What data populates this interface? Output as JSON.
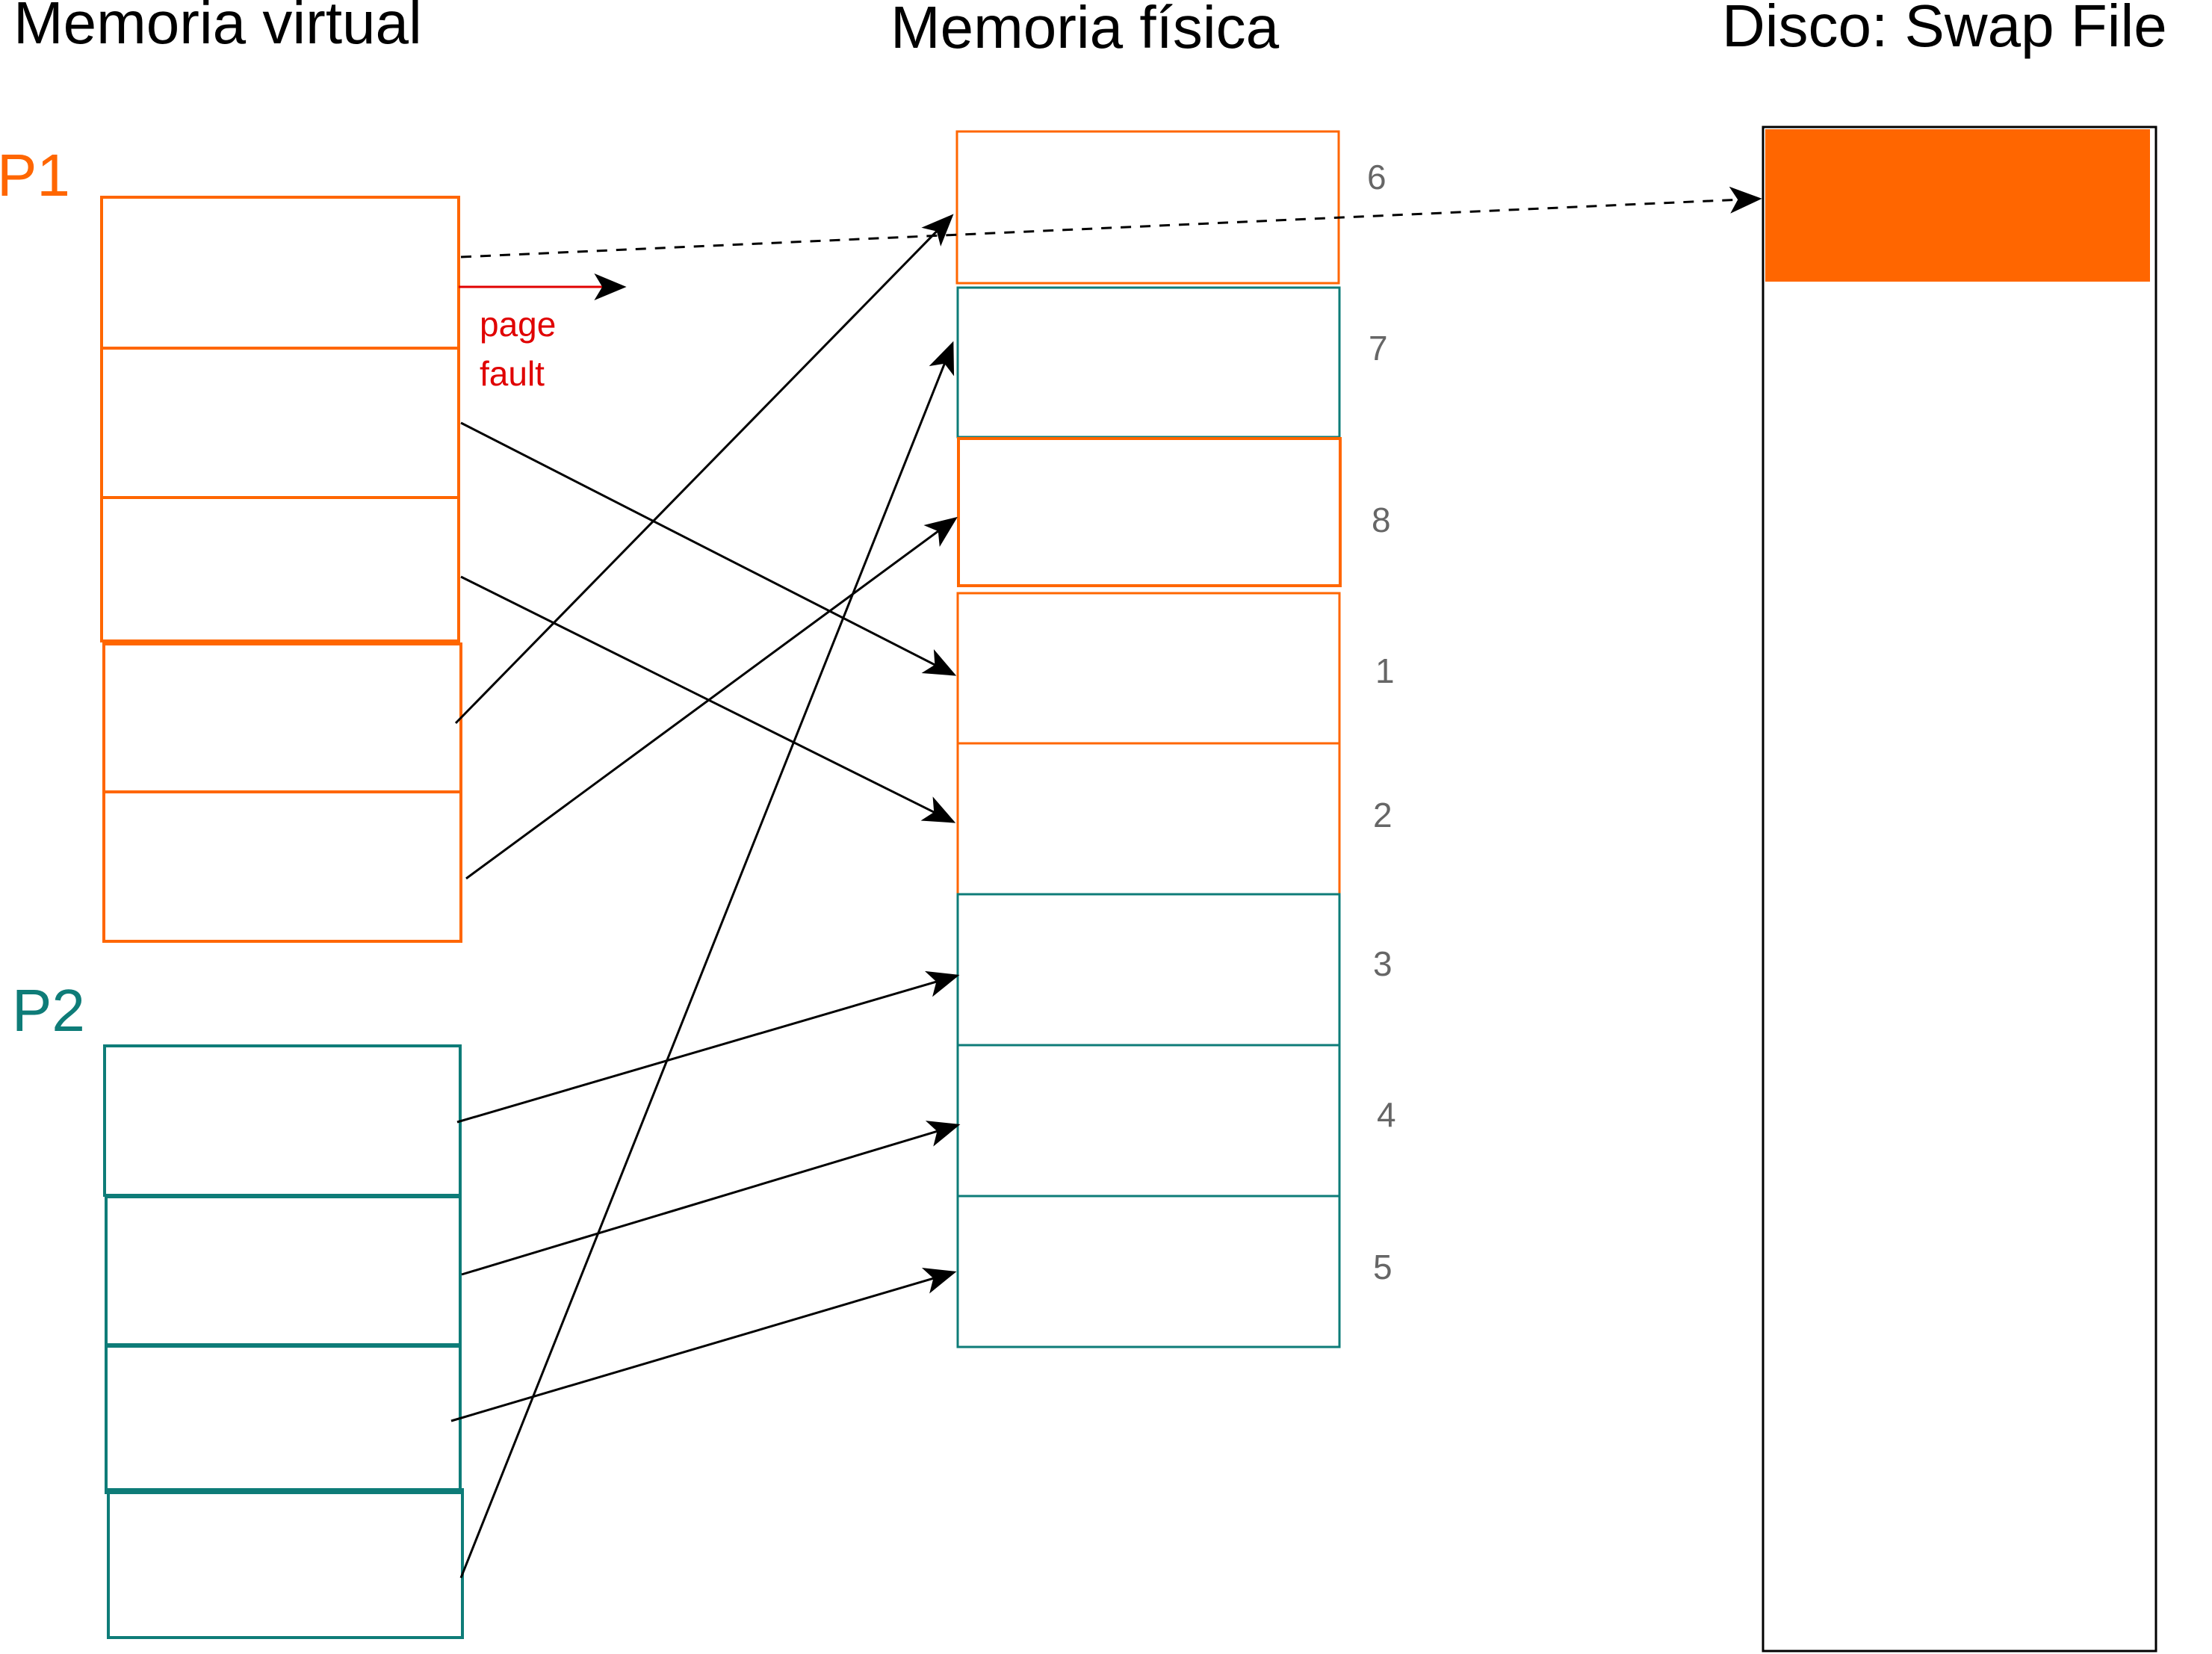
{
  "headings": {
    "virtual": "Memoria virtual",
    "physical": "Memoria física",
    "disk": "Disco: Swap File"
  },
  "processes": {
    "p1": "P1",
    "p2": "P2"
  },
  "page_fault": {
    "line1": "page",
    "line2": "fault"
  },
  "frames": [
    "6",
    "7",
    "8",
    "1",
    "2",
    "3",
    "4",
    "5"
  ],
  "colors": {
    "p1": "#ff6600",
    "p2": "#0e7c78",
    "arrow": "#000000",
    "fault": "#e00000",
    "frame_label": "#666666",
    "swap_block": "#ff6600"
  }
}
